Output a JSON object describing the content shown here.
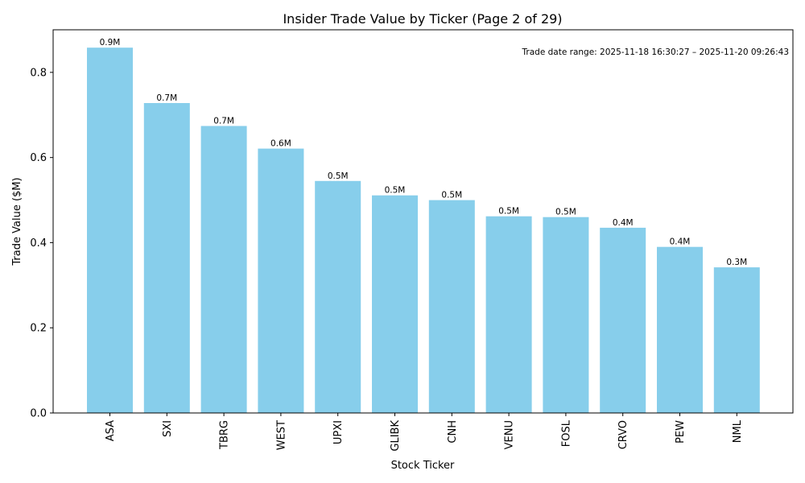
{
  "chart_data": {
    "type": "bar",
    "title": "Insider Trade Value by Ticker (Page 2 of 29)",
    "xlabel": "Stock Ticker",
    "ylabel": "Trade Value ($M)",
    "categories": [
      "ASA",
      "SXI",
      "TBRG",
      "WEST",
      "UPXI",
      "GLIBK",
      "CNH",
      "VENU",
      "FOSL",
      "CRVO",
      "PEW",
      "NML"
    ],
    "values": [
      0.858,
      0.728,
      0.674,
      0.621,
      0.545,
      0.511,
      0.5,
      0.462,
      0.46,
      0.435,
      0.39,
      0.342
    ],
    "data_labels": [
      "0.9M",
      "0.7M",
      "0.7M",
      "0.6M",
      "0.5M",
      "0.5M",
      "0.5M",
      "0.5M",
      "0.5M",
      "0.4M",
      "0.4M",
      "0.3M"
    ],
    "ylim": [
      0,
      0.9
    ],
    "yticks": [
      0.0,
      0.2,
      0.4,
      0.6,
      0.8
    ],
    "ytick_labels": [
      "0.0",
      "0.2",
      "0.4",
      "0.6",
      "0.8"
    ],
    "bar_color": "#87ceeb",
    "grid": false,
    "annotation": "Trade date range: 2025-11-18 16:30:27 – 2025-11-20 09:26:43",
    "annotation_position": "top-right"
  }
}
